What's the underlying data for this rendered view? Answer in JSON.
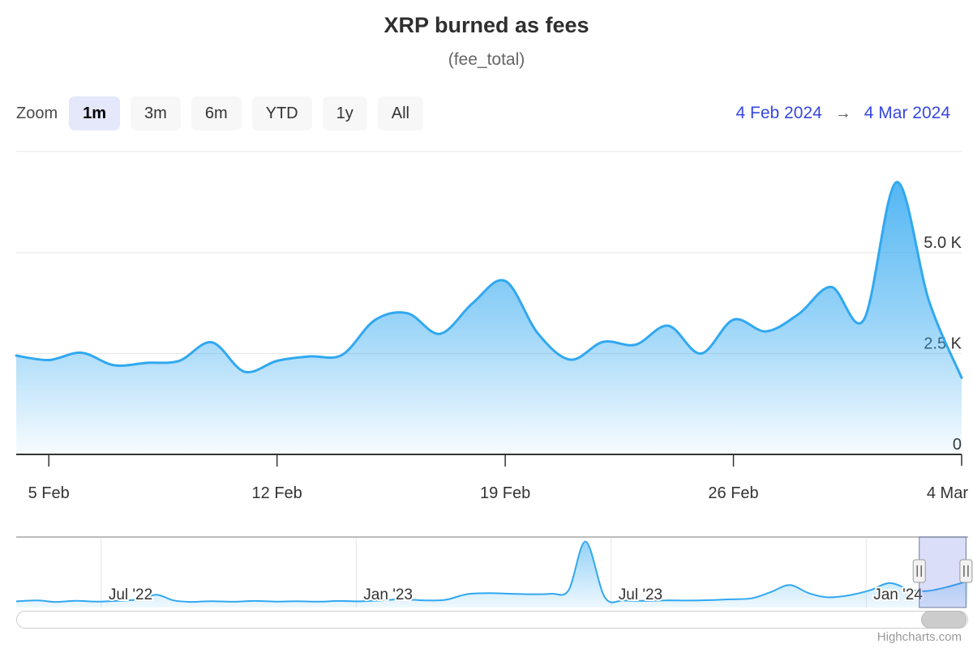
{
  "header": {
    "title": "XRP burned as fees",
    "subtitle": "(fee_total)"
  },
  "toolbar": {
    "zoom_label": "Zoom",
    "buttons": [
      {
        "label": "1m",
        "selected": true
      },
      {
        "label": "3m",
        "selected": false
      },
      {
        "label": "6m",
        "selected": false
      },
      {
        "label": "YTD",
        "selected": false
      },
      {
        "label": "1y",
        "selected": false
      },
      {
        "label": "All",
        "selected": false
      }
    ],
    "range": {
      "from": "4 Feb 2024",
      "arrow": "→",
      "to": "4 Mar 2024"
    }
  },
  "colors": {
    "line": "#31a8f0",
    "area_top": "rgba(49,168,240,0.9)",
    "area_mid": "rgba(49,168,240,0.5)",
    "area_bottom": "rgba(49,168,240,0.04)",
    "grid": "#e6e6e6",
    "axis_line": "#333333",
    "tick_text": "#333333",
    "button_selected_bg": "#e5e8fa",
    "button_bg": "#f7f7f7",
    "range_text": "#3647e2",
    "nav_outline": "#a6a6a6",
    "mask_fill": "rgba(100,115,230,0.24)",
    "mask_border": "#6e7b9e",
    "handle_fill": "#f2f2f2",
    "handle_border": "#999999"
  },
  "chart_data": {
    "type": "area",
    "title": "XRP burned as fees",
    "subtitle": "(fee_total)",
    "ylabel": "",
    "xlabel": "",
    "ylim": [
      0,
      7500
    ],
    "grid": "horizontal",
    "legend": false,
    "yticks": [
      {
        "value": 0,
        "label": "0"
      },
      {
        "value": 2500,
        "label": "2.5 K"
      },
      {
        "value": 5000,
        "label": "5.0 K"
      }
    ],
    "series": [
      {
        "name": "fee_total",
        "x": [
          "4 Feb",
          "5 Feb",
          "6 Feb",
          "7 Feb",
          "8 Feb",
          "9 Feb",
          "10 Feb",
          "11 Feb",
          "12 Feb",
          "13 Feb",
          "14 Feb",
          "15 Feb",
          "16 Feb",
          "17 Feb",
          "18 Feb",
          "19 Feb",
          "20 Feb",
          "21 Feb",
          "22 Feb",
          "23 Feb",
          "24 Feb",
          "25 Feb",
          "26 Feb",
          "27 Feb",
          "28 Feb",
          "29 Feb",
          "1 Mar",
          "2 Mar",
          "3 Mar",
          "4 Mar"
        ],
        "values": [
          2450,
          2340,
          2520,
          2210,
          2270,
          2320,
          2780,
          2050,
          2320,
          2430,
          2470,
          3330,
          3500,
          2990,
          3750,
          4300,
          3000,
          2350,
          2790,
          2720,
          3190,
          2500,
          3340,
          3050,
          3480,
          4150,
          3340,
          6750,
          3800,
          1900
        ]
      }
    ],
    "xticks": [
      {
        "i": 1,
        "label": "5 Feb"
      },
      {
        "i": 8,
        "label": "12 Feb"
      },
      {
        "i": 15,
        "label": "19 Feb"
      },
      {
        "i": 22,
        "label": "26 Feb"
      },
      {
        "i": 29,
        "label": "4 Mar"
      }
    ],
    "navigator": {
      "x_origin": "May 2022",
      "x_span_months": 22.4,
      "xticks": [
        {
          "m": 2,
          "label": "Jul '22"
        },
        {
          "m": 8,
          "label": "Jan '23"
        },
        {
          "m": 14,
          "label": "Jul '23"
        },
        {
          "m": 20,
          "label": "Jan '24"
        }
      ],
      "points_m_v": [
        [
          0,
          600
        ],
        [
          0.5,
          700
        ],
        [
          0.9,
          550
        ],
        [
          1.4,
          650
        ],
        [
          1.9,
          580
        ],
        [
          2.4,
          650
        ],
        [
          2.9,
          800
        ],
        [
          3.3,
          1250
        ],
        [
          3.7,
          700
        ],
        [
          4.1,
          550
        ],
        [
          4.6,
          620
        ],
        [
          5.1,
          560
        ],
        [
          5.6,
          640
        ],
        [
          6.1,
          580
        ],
        [
          6.6,
          620
        ],
        [
          7.1,
          570
        ],
        [
          7.6,
          640
        ],
        [
          8.1,
          600
        ],
        [
          8.6,
          700
        ],
        [
          9.1,
          800
        ],
        [
          9.6,
          700
        ],
        [
          10.1,
          750
        ],
        [
          10.6,
          1300
        ],
        [
          11.1,
          1400
        ],
        [
          11.6,
          1350
        ],
        [
          12.1,
          1300
        ],
        [
          12.6,
          1350
        ],
        [
          13.0,
          1700
        ],
        [
          13.4,
          6450
        ],
        [
          13.85,
          1000
        ],
        [
          14.3,
          700
        ],
        [
          14.8,
          650
        ],
        [
          15.3,
          700
        ],
        [
          15.8,
          680
        ],
        [
          16.3,
          720
        ],
        [
          16.8,
          800
        ],
        [
          17.3,
          900
        ],
        [
          17.75,
          1500
        ],
        [
          18.2,
          2200
        ],
        [
          18.65,
          1400
        ],
        [
          19.1,
          1000
        ],
        [
          19.6,
          1200
        ],
        [
          20.1,
          1700
        ],
        [
          20.55,
          2400
        ],
        [
          21.0,
          1800
        ],
        [
          21.4,
          1600
        ],
        [
          21.9,
          2000
        ],
        [
          22.4,
          2600
        ]
      ],
      "nav_ylim": [
        0,
        6900
      ],
      "selection_m": [
        21.25,
        22.35
      ]
    }
  },
  "credits": "Highcharts.com"
}
